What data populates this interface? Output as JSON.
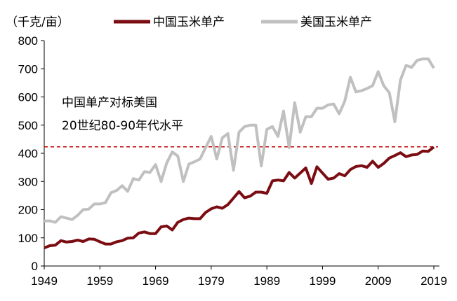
{
  "chart_data": {
    "type": "line",
    "unit_label": "（千克/亩）",
    "x_ticks": [
      1949,
      1959,
      1969,
      1979,
      1989,
      1999,
      2009,
      2019
    ],
    "y_ticks": [
      0,
      100,
      200,
      300,
      400,
      500,
      600,
      700,
      800
    ],
    "xlim": [
      1949,
      2019
    ],
    "ylim": [
      0,
      800
    ],
    "legend_position": "top",
    "annotation": [
      "中国单产对标美国",
      "20世纪80-90年代水平"
    ],
    "reference_line": {
      "value": 423,
      "color": "#c00000",
      "style": "dashed"
    },
    "series": [
      {
        "name": "中国玉米单产",
        "color": "#7b0c12",
        "x": [
          1949,
          1950,
          1951,
          1952,
          1953,
          1954,
          1955,
          1956,
          1957,
          1958,
          1959,
          1960,
          1961,
          1962,
          1963,
          1964,
          1965,
          1966,
          1967,
          1968,
          1969,
          1970,
          1971,
          1972,
          1973,
          1974,
          1975,
          1976,
          1977,
          1978,
          1979,
          1980,
          1981,
          1982,
          1983,
          1984,
          1985,
          1986,
          1987,
          1988,
          1989,
          1990,
          1991,
          1992,
          1993,
          1994,
          1995,
          1996,
          1997,
          1998,
          1999,
          2000,
          2001,
          2002,
          2003,
          2004,
          2005,
          2006,
          2007,
          2008,
          2009,
          2010,
          2011,
          2012,
          2013,
          2014,
          2015,
          2016,
          2017,
          2018,
          2019
        ],
        "values": [
          64,
          72,
          74,
          90,
          85,
          87,
          92,
          87,
          96,
          95,
          86,
          78,
          78,
          86,
          90,
          99,
          100,
          117,
          121,
          115,
          115,
          139,
          142,
          128,
          155,
          165,
          170,
          168,
          168,
          190,
          203,
          210,
          205,
          218,
          241,
          264,
          242,
          248,
          262,
          262,
          258,
          302,
          305,
          302,
          332,
          312,
          330,
          348,
          293,
          352,
          330,
          308,
          312,
          328,
          320,
          342,
          353,
          356,
          350,
          372,
          350,
          364,
          383,
          392,
          402,
          388,
          394,
          396,
          408,
          407,
          422
        ]
      },
      {
        "name": "美国玉米单产",
        "color": "#c0c0c0",
        "x": [
          1949,
          1950,
          1951,
          1952,
          1953,
          1954,
          1955,
          1956,
          1957,
          1958,
          1959,
          1960,
          1961,
          1962,
          1963,
          1964,
          1965,
          1966,
          1967,
          1968,
          1969,
          1970,
          1971,
          1972,
          1973,
          1974,
          1975,
          1976,
          1977,
          1978,
          1979,
          1980,
          1981,
          1982,
          1983,
          1984,
          1985,
          1986,
          1987,
          1988,
          1989,
          1990,
          1991,
          1992,
          1993,
          1994,
          1995,
          1996,
          1997,
          1998,
          1999,
          2000,
          2001,
          2002,
          2003,
          2004,
          2005,
          2006,
          2007,
          2008,
          2009,
          2010,
          2011,
          2012,
          2013,
          2014,
          2015,
          2016,
          2017,
          2018,
          2019
        ],
        "values": [
          160,
          160,
          155,
          175,
          170,
          165,
          180,
          200,
          202,
          220,
          220,
          225,
          260,
          268,
          285,
          265,
          310,
          305,
          335,
          332,
          360,
          300,
          365,
          405,
          390,
          300,
          362,
          370,
          380,
          420,
          460,
          380,
          455,
          470,
          340,
          475,
          495,
          500,
          500,
          355,
          485,
          495,
          460,
          550,
          420,
          580,
          475,
          530,
          530,
          560,
          560,
          572,
          575,
          540,
          585,
          670,
          618,
          622,
          630,
          640,
          690,
          640,
          615,
          512,
          660,
          712,
          705,
          730,
          735,
          735,
          702
        ]
      }
    ]
  }
}
